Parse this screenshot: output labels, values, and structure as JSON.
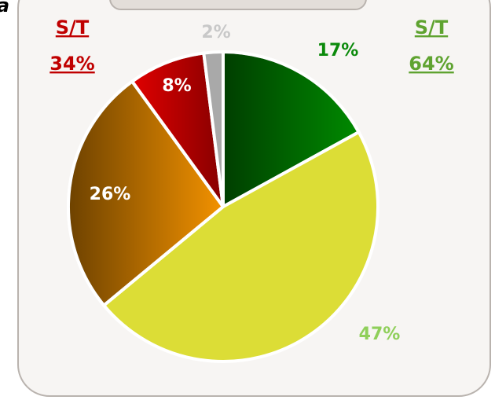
{
  "chart_data": {
    "type": "pie",
    "corner_label": "a",
    "values": [
      17,
      47,
      26,
      8,
      2
    ],
    "value_labels": [
      "17%",
      "47%",
      "26%",
      "8%",
      "2%"
    ],
    "colors": [
      "#008a00",
      "#dcdd36",
      "#f39200",
      "#e00000",
      "#a9a9a9"
    ],
    "label_colors": [
      "#0b8a0b",
      "#8fcf5a",
      "#ffffff",
      "#ffffff",
      "#c8c8c8"
    ],
    "annotations": [
      {
        "lines": [
          "S/T",
          "34%"
        ],
        "color": "#c00000"
      },
      {
        "lines": [
          "S/T",
          "64%"
        ],
        "color": "#5fa330"
      }
    ]
  }
}
